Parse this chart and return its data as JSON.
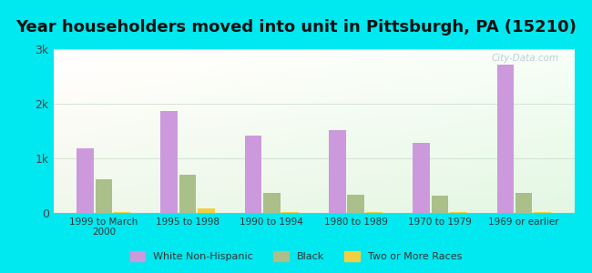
{
  "title": "Year householders moved into unit in Pittsburgh, PA (15210)",
  "categories": [
    "1999 to March\n2000",
    "1995 to 1998",
    "1990 to 1994",
    "1980 to 1989",
    "1970 to 1979",
    "1969 or earlier"
  ],
  "series": {
    "White Non-Hispanic": [
      1180,
      1870,
      1420,
      1520,
      1280,
      2720
    ],
    "Black": [
      620,
      700,
      370,
      330,
      310,
      370
    ],
    "Two or More Races": [
      10,
      80,
      15,
      15,
      10,
      10
    ]
  },
  "colors": {
    "White Non-Hispanic": "#cc99dd",
    "Black": "#aabf8a",
    "Two or More Races": "#f0d040"
  },
  "background_outer": "#00e8f0",
  "ylim": [
    0,
    3000
  ],
  "yticks": [
    0,
    1000,
    2000,
    3000
  ],
  "ytick_labels": [
    "0",
    "1k",
    "2k",
    "3k"
  ],
  "bar_width": 0.22,
  "title_fontsize": 13,
  "watermark": "City-Data.com"
}
